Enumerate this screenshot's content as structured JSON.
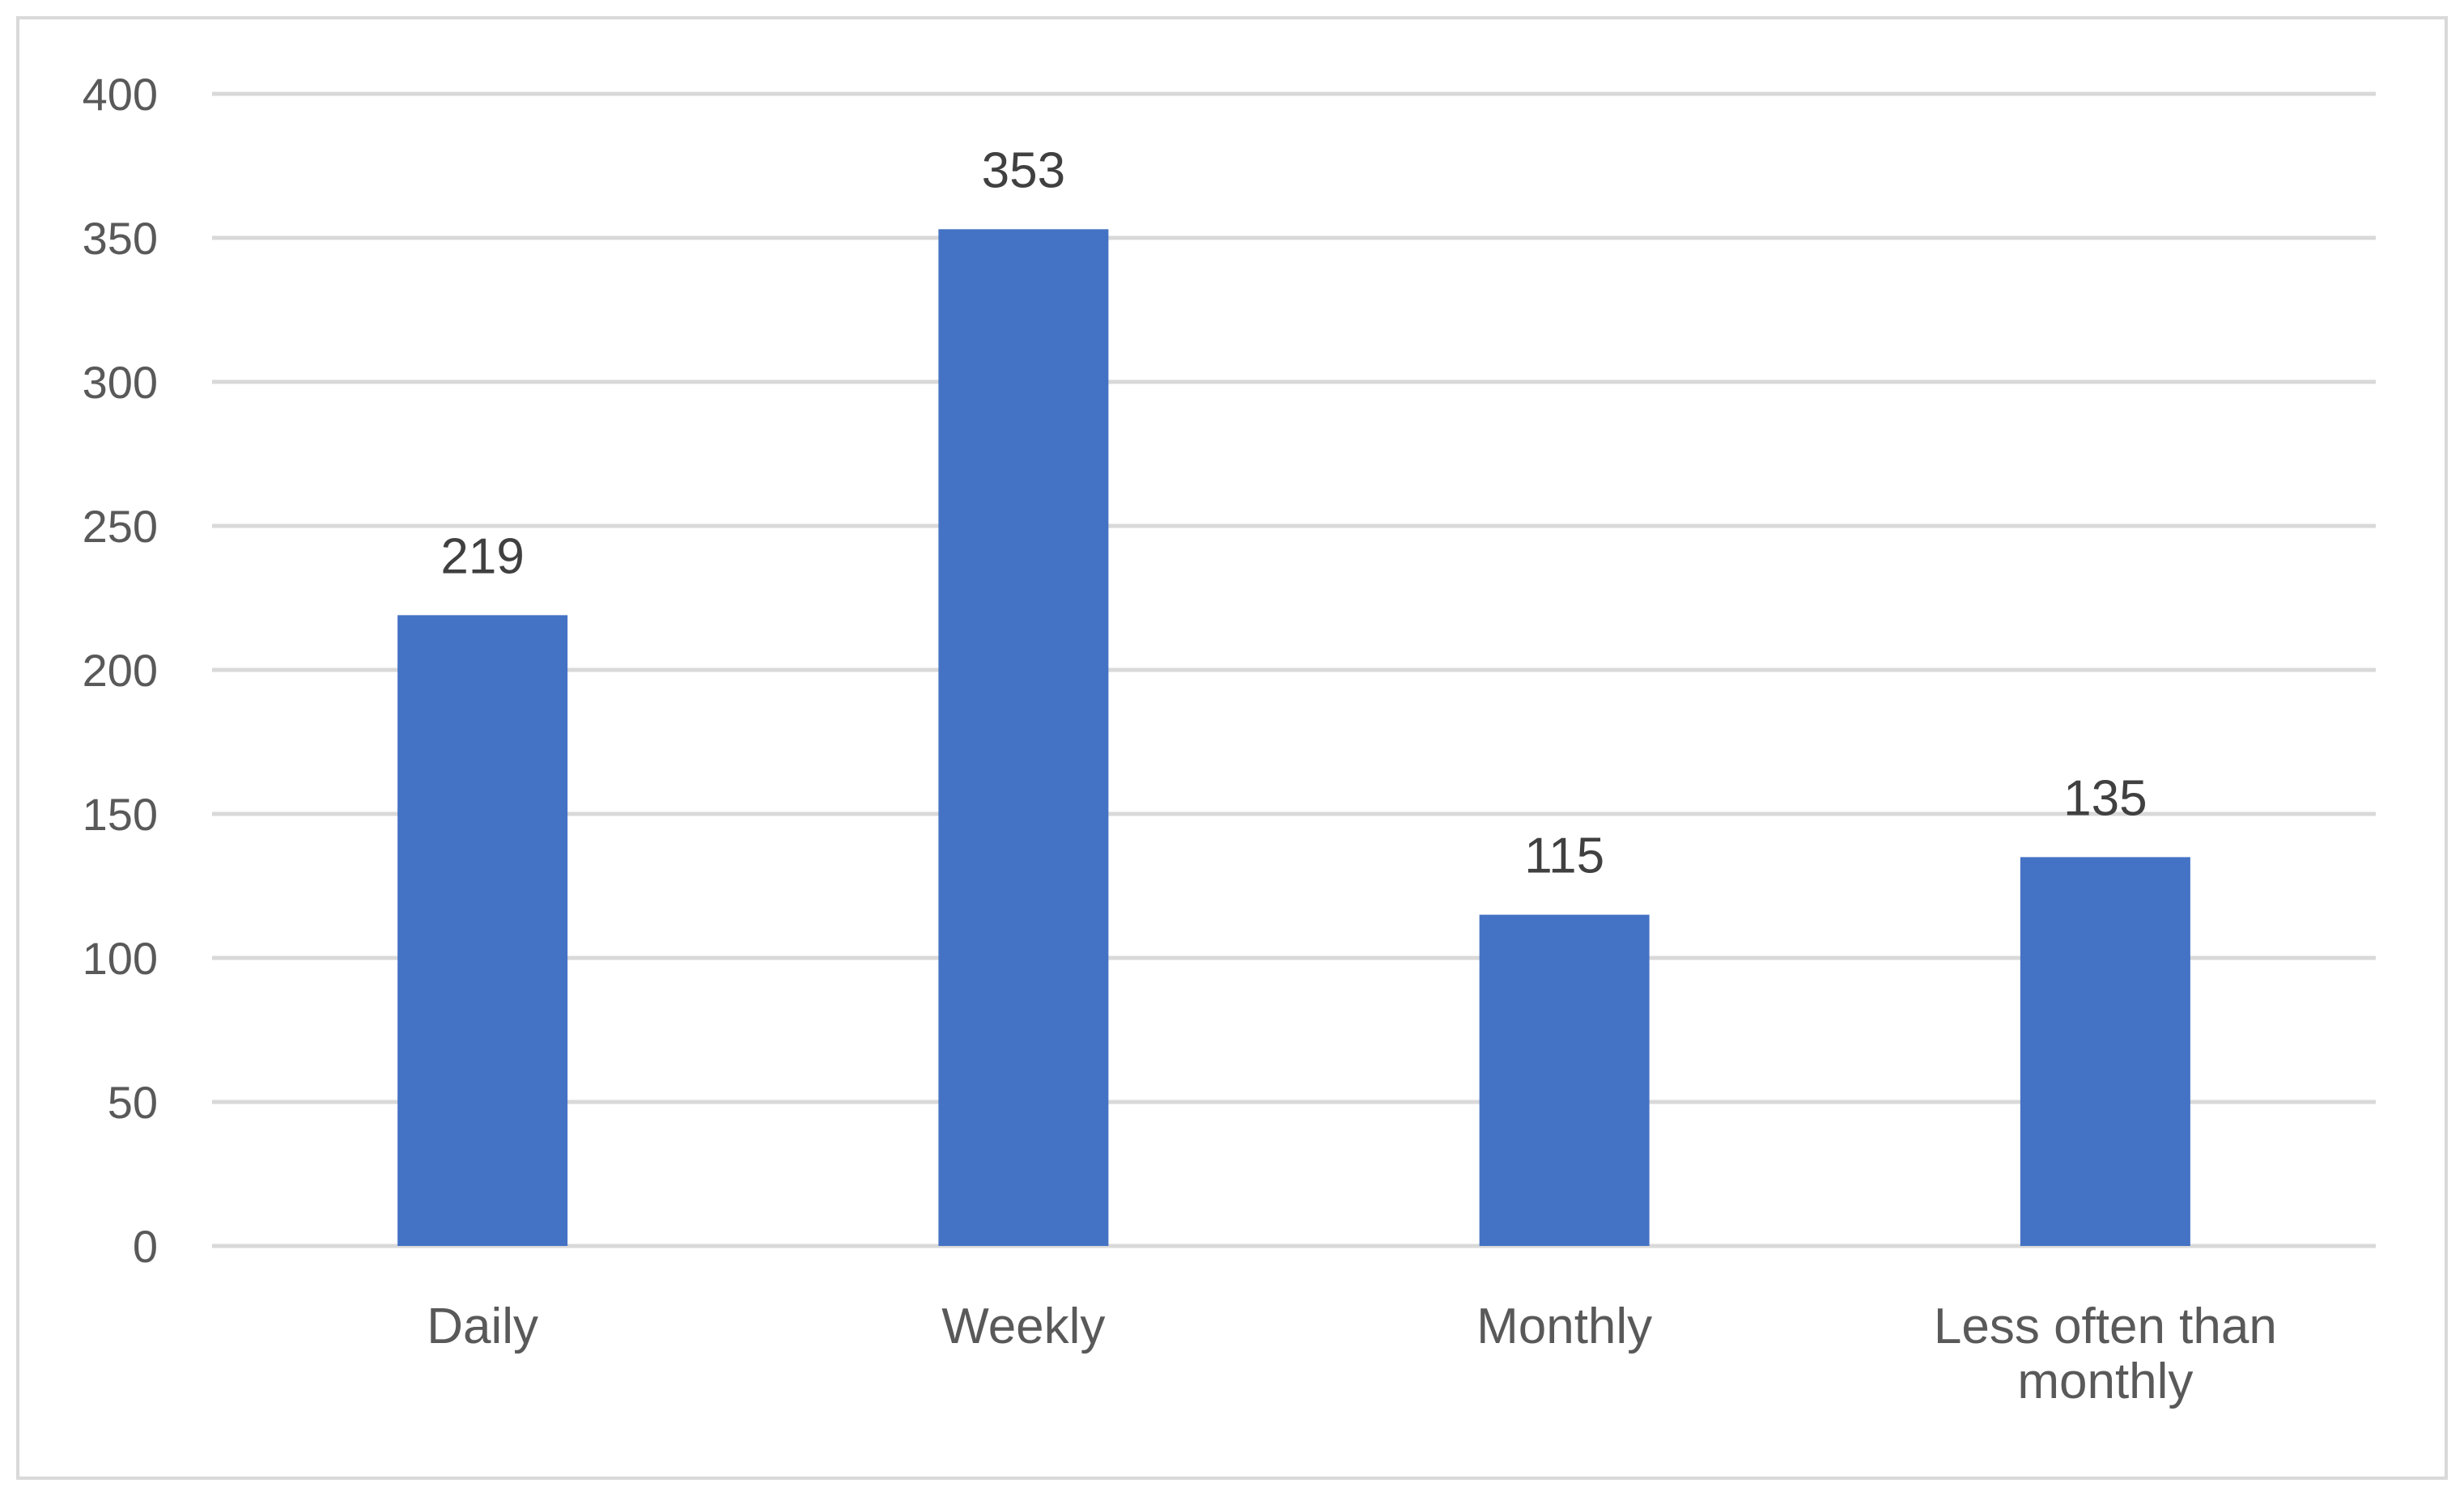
{
  "chart_data": {
    "type": "bar",
    "categories": [
      "Daily",
      "Weekly",
      "Monthly",
      "Less often than monthly"
    ],
    "category_lines": [
      [
        "Daily"
      ],
      [
        "Weekly"
      ],
      [
        "Monthly"
      ],
      [
        "Less often than",
        "monthly"
      ]
    ],
    "values": [
      219,
      353,
      115,
      135
    ],
    "title": "",
    "xlabel": "",
    "ylabel": "",
    "ylim": [
      0,
      400
    ],
    "yticks": [
      "0",
      "50",
      "100",
      "150",
      "200",
      "250",
      "300",
      "350",
      "400"
    ],
    "grid": true,
    "legend": "none",
    "data_labels": true,
    "colors": {
      "bar": "#4472C4",
      "grid": "#D9D9D9",
      "frame": "#D9D9D9",
      "tick_text": "#595959",
      "label_text": "#404040"
    }
  }
}
